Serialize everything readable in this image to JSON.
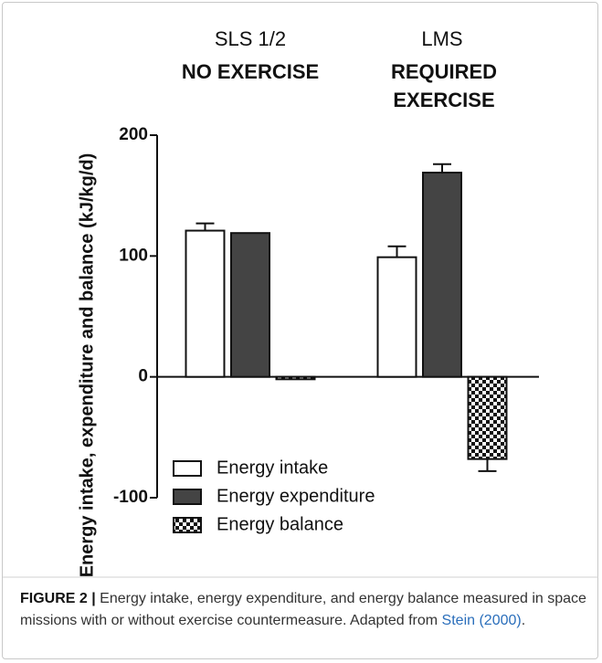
{
  "chart_data": {
    "type": "bar",
    "group_labels": [
      {
        "title": "SLS 1/2",
        "subtitle": [
          "NO EXERCISE"
        ]
      },
      {
        "title": "LMS",
        "subtitle": [
          "REQUIRED",
          "EXERCISE"
        ]
      }
    ],
    "ylabel": "Energy intake, expenditure and balance (kJ/kg/d)",
    "series": [
      {
        "name": "Energy intake",
        "color": "#ffffff",
        "values": [
          121,
          99
        ],
        "errors": [
          6,
          9
        ]
      },
      {
        "name": "Energy expenditure",
        "color": "#444444",
        "values": [
          119,
          169
        ],
        "errors": [
          null,
          7
        ]
      },
      {
        "name": "Energy balance",
        "color": "#111111",
        "pattern": "checkerboard",
        "values": [
          -2,
          -68
        ],
        "errors": [
          null,
          10
        ]
      }
    ],
    "ylim": [
      -100,
      200
    ],
    "yticks": [
      -100,
      0,
      100,
      200
    ],
    "legend": "lower left"
  },
  "caption": {
    "label": "FIGURE 2 |",
    "text": " Energy intake, energy expenditure, and energy balance measured in space missions with or without exercise countermeasure. Adapted from ",
    "link": "Stein (2000)",
    "tail": "."
  }
}
